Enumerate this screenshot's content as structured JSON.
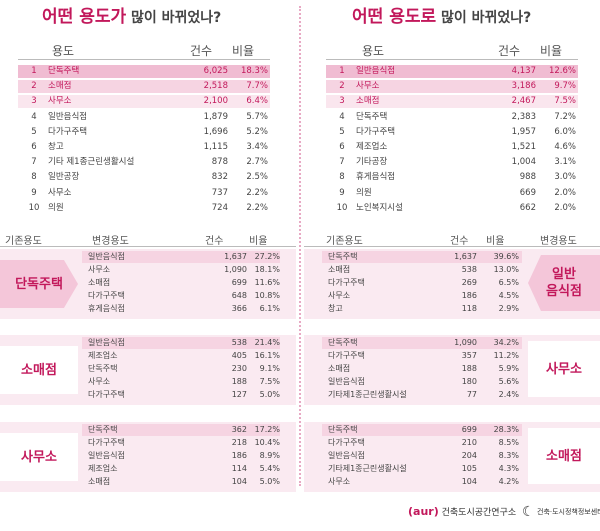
{
  "titles": {
    "left": {
      "hl": "어떤 용도가",
      "rest": " 많이 바뀌었나?"
    },
    "right": {
      "hl": "어떤 용도로",
      "rest": " 많이 바뀌었나?"
    }
  },
  "rank_headers": {
    "use": "용도",
    "count": "건수",
    "ratio": "비율"
  },
  "rank_left": [
    {
      "rank": "1",
      "name": "단독주택",
      "count": "6,025",
      "pct": "18.3%"
    },
    {
      "rank": "2",
      "name": "소매점",
      "count": "2,518",
      "pct": "7.7%"
    },
    {
      "rank": "3",
      "name": "사무소",
      "count": "2,100",
      "pct": "6.4%"
    },
    {
      "rank": "4",
      "name": "일반음식점",
      "count": "1,879",
      "pct": "5.7%"
    },
    {
      "rank": "5",
      "name": "다가구주택",
      "count": "1,696",
      "pct": "5.2%"
    },
    {
      "rank": "6",
      "name": "창고",
      "count": "1,115",
      "pct": "3.4%"
    },
    {
      "rank": "7",
      "name": "기타 제1종근린생활시설",
      "count": "878",
      "pct": "2.7%"
    },
    {
      "rank": "8",
      "name": "일반공장",
      "count": "832",
      "pct": "2.5%"
    },
    {
      "rank": "9",
      "name": "사무소",
      "count": "737",
      "pct": "2.2%"
    },
    {
      "rank": "10",
      "name": "의원",
      "count": "724",
      "pct": "2.2%"
    }
  ],
  "rank_right": [
    {
      "rank": "1",
      "name": "일반음식점",
      "count": "4,137",
      "pct": "12.6%"
    },
    {
      "rank": "2",
      "name": "사무소",
      "count": "3,186",
      "pct": "9.7%"
    },
    {
      "rank": "3",
      "name": "소매점",
      "count": "2,467",
      "pct": "7.5%"
    },
    {
      "rank": "4",
      "name": "단독주택",
      "count": "2,383",
      "pct": "7.2%"
    },
    {
      "rank": "5",
      "name": "다가구주택",
      "count": "1,957",
      "pct": "6.0%"
    },
    {
      "rank": "6",
      "name": "제조업소",
      "count": "1,521",
      "pct": "4.6%"
    },
    {
      "rank": "7",
      "name": "기타공장",
      "count": "1,004",
      "pct": "3.1%"
    },
    {
      "rank": "8",
      "name": "휴게음식점",
      "count": "988",
      "pct": "3.0%"
    },
    {
      "rank": "9",
      "name": "의원",
      "count": "669",
      "pct": "2.0%"
    },
    {
      "rank": "10",
      "name": "노인복지시설",
      "count": "662",
      "pct": "2.0%"
    }
  ],
  "left_headers": {
    "orig": "기존용도",
    "changed": "변경용도",
    "count": "건수",
    "ratio": "비율"
  },
  "right_headers": {
    "orig": "기존용도",
    "count": "건수",
    "ratio": "비율",
    "changed": "변경용도"
  },
  "left_groups": [
    {
      "label": "단독주택",
      "rows": [
        {
          "name": "일반음식점",
          "count": "1,637",
          "pct": "27.2%"
        },
        {
          "name": "사무소",
          "count": "1,090",
          "pct": "18.1%"
        },
        {
          "name": "소매점",
          "count": "699",
          "pct": "11.6%"
        },
        {
          "name": "다가구주택",
          "count": "648",
          "pct": "10.8%"
        },
        {
          "name": "휴게음식점",
          "count": "366",
          "pct": "6.1%"
        }
      ]
    },
    {
      "label": "소매점",
      "rows": [
        {
          "name": "일반음식점",
          "count": "538",
          "pct": "21.4%"
        },
        {
          "name": "제조업소",
          "count": "405",
          "pct": "16.1%"
        },
        {
          "name": "단독주택",
          "count": "230",
          "pct": "9.1%"
        },
        {
          "name": "사무소",
          "count": "188",
          "pct": "7.5%"
        },
        {
          "name": "다가구주택",
          "count": "127",
          "pct": "5.0%"
        }
      ]
    },
    {
      "label": "사무소",
      "rows": [
        {
          "name": "단독주택",
          "count": "362",
          "pct": "17.2%"
        },
        {
          "name": "다가구주택",
          "count": "218",
          "pct": "10.4%"
        },
        {
          "name": "일반음식점",
          "count": "186",
          "pct": "8.9%"
        },
        {
          "name": "제조업소",
          "count": "114",
          "pct": "5.4%"
        },
        {
          "name": "소매점",
          "count": "104",
          "pct": "5.0%"
        }
      ]
    }
  ],
  "right_groups": [
    {
      "label": "일반\n음식점",
      "rows": [
        {
          "name": "단독주택",
          "count": "1,637",
          "pct": "39.6%"
        },
        {
          "name": "소매점",
          "count": "538",
          "pct": "13.0%"
        },
        {
          "name": "다가구주택",
          "count": "269",
          "pct": "6.5%"
        },
        {
          "name": "사무소",
          "count": "186",
          "pct": "4.5%"
        },
        {
          "name": "창고",
          "count": "118",
          "pct": "2.9%"
        }
      ]
    },
    {
      "label": "사무소",
      "rows": [
        {
          "name": "단독주택",
          "count": "1,090",
          "pct": "34.2%"
        },
        {
          "name": "다가구주택",
          "count": "357",
          "pct": "11.2%"
        },
        {
          "name": "소매점",
          "count": "188",
          "pct": "5.9%"
        },
        {
          "name": "일반음식점",
          "count": "180",
          "pct": "5.6%"
        },
        {
          "name": "기타제1종근린생활시설",
          "count": "77",
          "pct": "2.4%"
        }
      ]
    },
    {
      "label": "소매점",
      "rows": [
        {
          "name": "단독주택",
          "count": "699",
          "pct": "28.3%"
        },
        {
          "name": "다가구주택",
          "count": "210",
          "pct": "8.5%"
        },
        {
          "name": "일반음식점",
          "count": "204",
          "pct": "8.3%"
        },
        {
          "name": "기타제1종근린생활시설",
          "count": "105",
          "pct": "4.3%"
        },
        {
          "name": "사무소",
          "count": "104",
          "pct": "4.2%"
        }
      ]
    }
  ],
  "footer": {
    "aur": "(aur)",
    "org1": "건축도시공간연구소",
    "org2": "건축·도시정책정보센터"
  },
  "colors": {
    "accent": "#c2185b",
    "band": "#faeaf1",
    "highlight": "#f0bcd2"
  }
}
